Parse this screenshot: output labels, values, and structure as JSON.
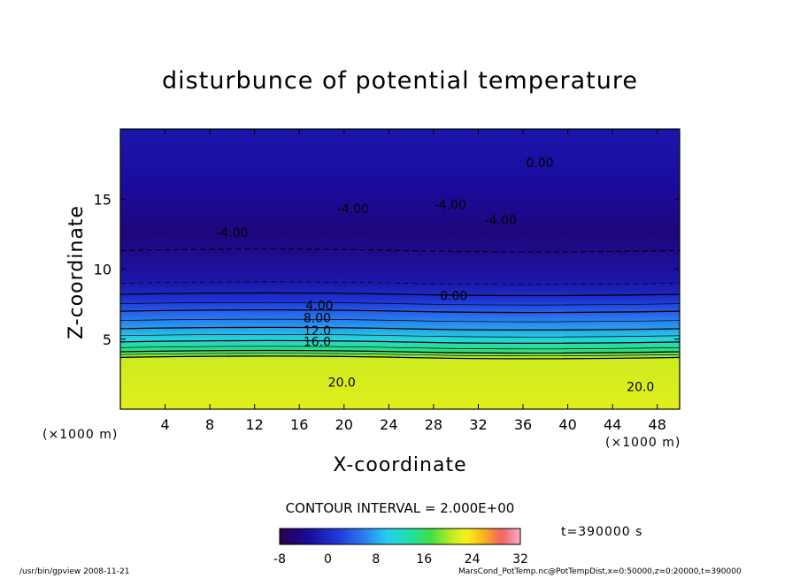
{
  "chart_data": {
    "type": "heatmap",
    "title": "disturbunce of potential temperature",
    "xlabel": "X-coordinate",
    "ylabel": "Z-coordinate",
    "x_unit": "(×1000 m)",
    "x_unit_left": "(×1000 m)",
    "xlim": [
      0,
      50
    ],
    "ylim": [
      0,
      20
    ],
    "x_ticks": [
      4,
      8,
      12,
      16,
      20,
      24,
      28,
      32,
      36,
      40,
      44,
      48
    ],
    "y_ticks": [
      5,
      10,
      15
    ],
    "contour_interval": "CONTOUR INTERVAL = 2.000E+00",
    "contour_labels": [
      {
        "text": "0.00",
        "x": 37.5,
        "y": 17.3
      },
      {
        "text": "-4.00",
        "x": 20.8,
        "y": 14.0
      },
      {
        "text": "-4.00",
        "x": 29.5,
        "y": 14.3
      },
      {
        "text": "-4.00",
        "x": 34.0,
        "y": 13.2
      },
      {
        "text": "-4.00",
        "x": 10.0,
        "y": 12.3
      },
      {
        "text": "0.00",
        "x": 29.8,
        "y": 7.8
      },
      {
        "text": "4.00",
        "x": 17.8,
        "y": 7.1
      },
      {
        "text": "8.00",
        "x": 17.6,
        "y": 6.2
      },
      {
        "text": "12.0",
        "x": 17.6,
        "y": 5.3
      },
      {
        "text": "16.0",
        "x": 17.6,
        "y": 4.5
      },
      {
        "text": "20.0",
        "x": 19.8,
        "y": 1.6
      },
      {
        "text": "20.0",
        "x": 46.5,
        "y": 1.3
      }
    ],
    "field_profile": [
      {
        "z": 0.0,
        "value": 22
      },
      {
        "z": 3.6,
        "value": 21
      },
      {
        "z": 4.2,
        "value": 15
      },
      {
        "z": 5.0,
        "value": 11
      },
      {
        "z": 6.0,
        "value": 7
      },
      {
        "z": 7.0,
        "value": 4
      },
      {
        "z": 7.8,
        "value": 1
      },
      {
        "z": 9.0,
        "value": -2
      },
      {
        "z": 12.5,
        "value": -5
      },
      {
        "z": 16.0,
        "value": -3
      },
      {
        "z": 20.0,
        "value": -2
      }
    ],
    "colorbar": {
      "ticks": [
        -8,
        0,
        8,
        16,
        24,
        32
      ],
      "range": [
        -8,
        32
      ]
    },
    "time": "t=390000 s"
  },
  "footer": {
    "left": "/usr/bin/gpview  2008-11-21",
    "right": "MarsCond_PotTemp.nc@PotTempDist,x=0:50000,z=0:20000,t=390000"
  }
}
